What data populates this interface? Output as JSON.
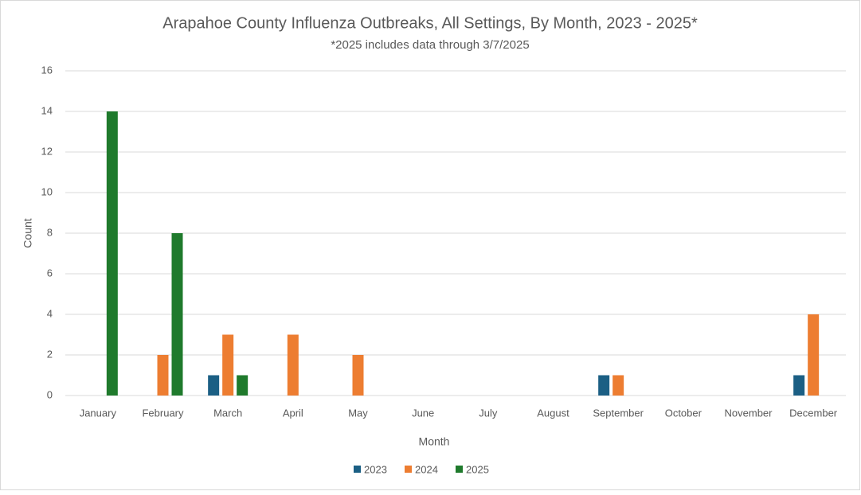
{
  "chart_data": {
    "type": "bar",
    "title": "Arapahoe County Influenza Outbreaks, All Settings, By Month, 2023 - 2025*",
    "subtitle": "*2025 includes data through 3/7/2025",
    "x_label": "Month",
    "y_label": "Count",
    "categories": [
      "January",
      "February",
      "March",
      "April",
      "May",
      "June",
      "July",
      "August",
      "September",
      "October",
      "November",
      "December"
    ],
    "series": [
      {
        "name": "2023",
        "color": "#1b5f84",
        "values": [
          0,
          0,
          1,
          0,
          0,
          0,
          0,
          0,
          1,
          0,
          0,
          1
        ]
      },
      {
        "name": "2024",
        "color": "#ed7d31",
        "values": [
          0,
          2,
          3,
          3,
          2,
          0,
          0,
          0,
          1,
          0,
          0,
          4
        ]
      },
      {
        "name": "2025",
        "color": "#1f7a2c",
        "values": [
          14,
          8,
          1,
          null,
          null,
          null,
          null,
          null,
          null,
          null,
          null,
          null
        ]
      }
    ],
    "ylim": [
      0,
      16
    ],
    "yticks": [
      0,
      2,
      4,
      6,
      8,
      10,
      12,
      14,
      16
    ],
    "grid": true,
    "legend": "bottom"
  }
}
